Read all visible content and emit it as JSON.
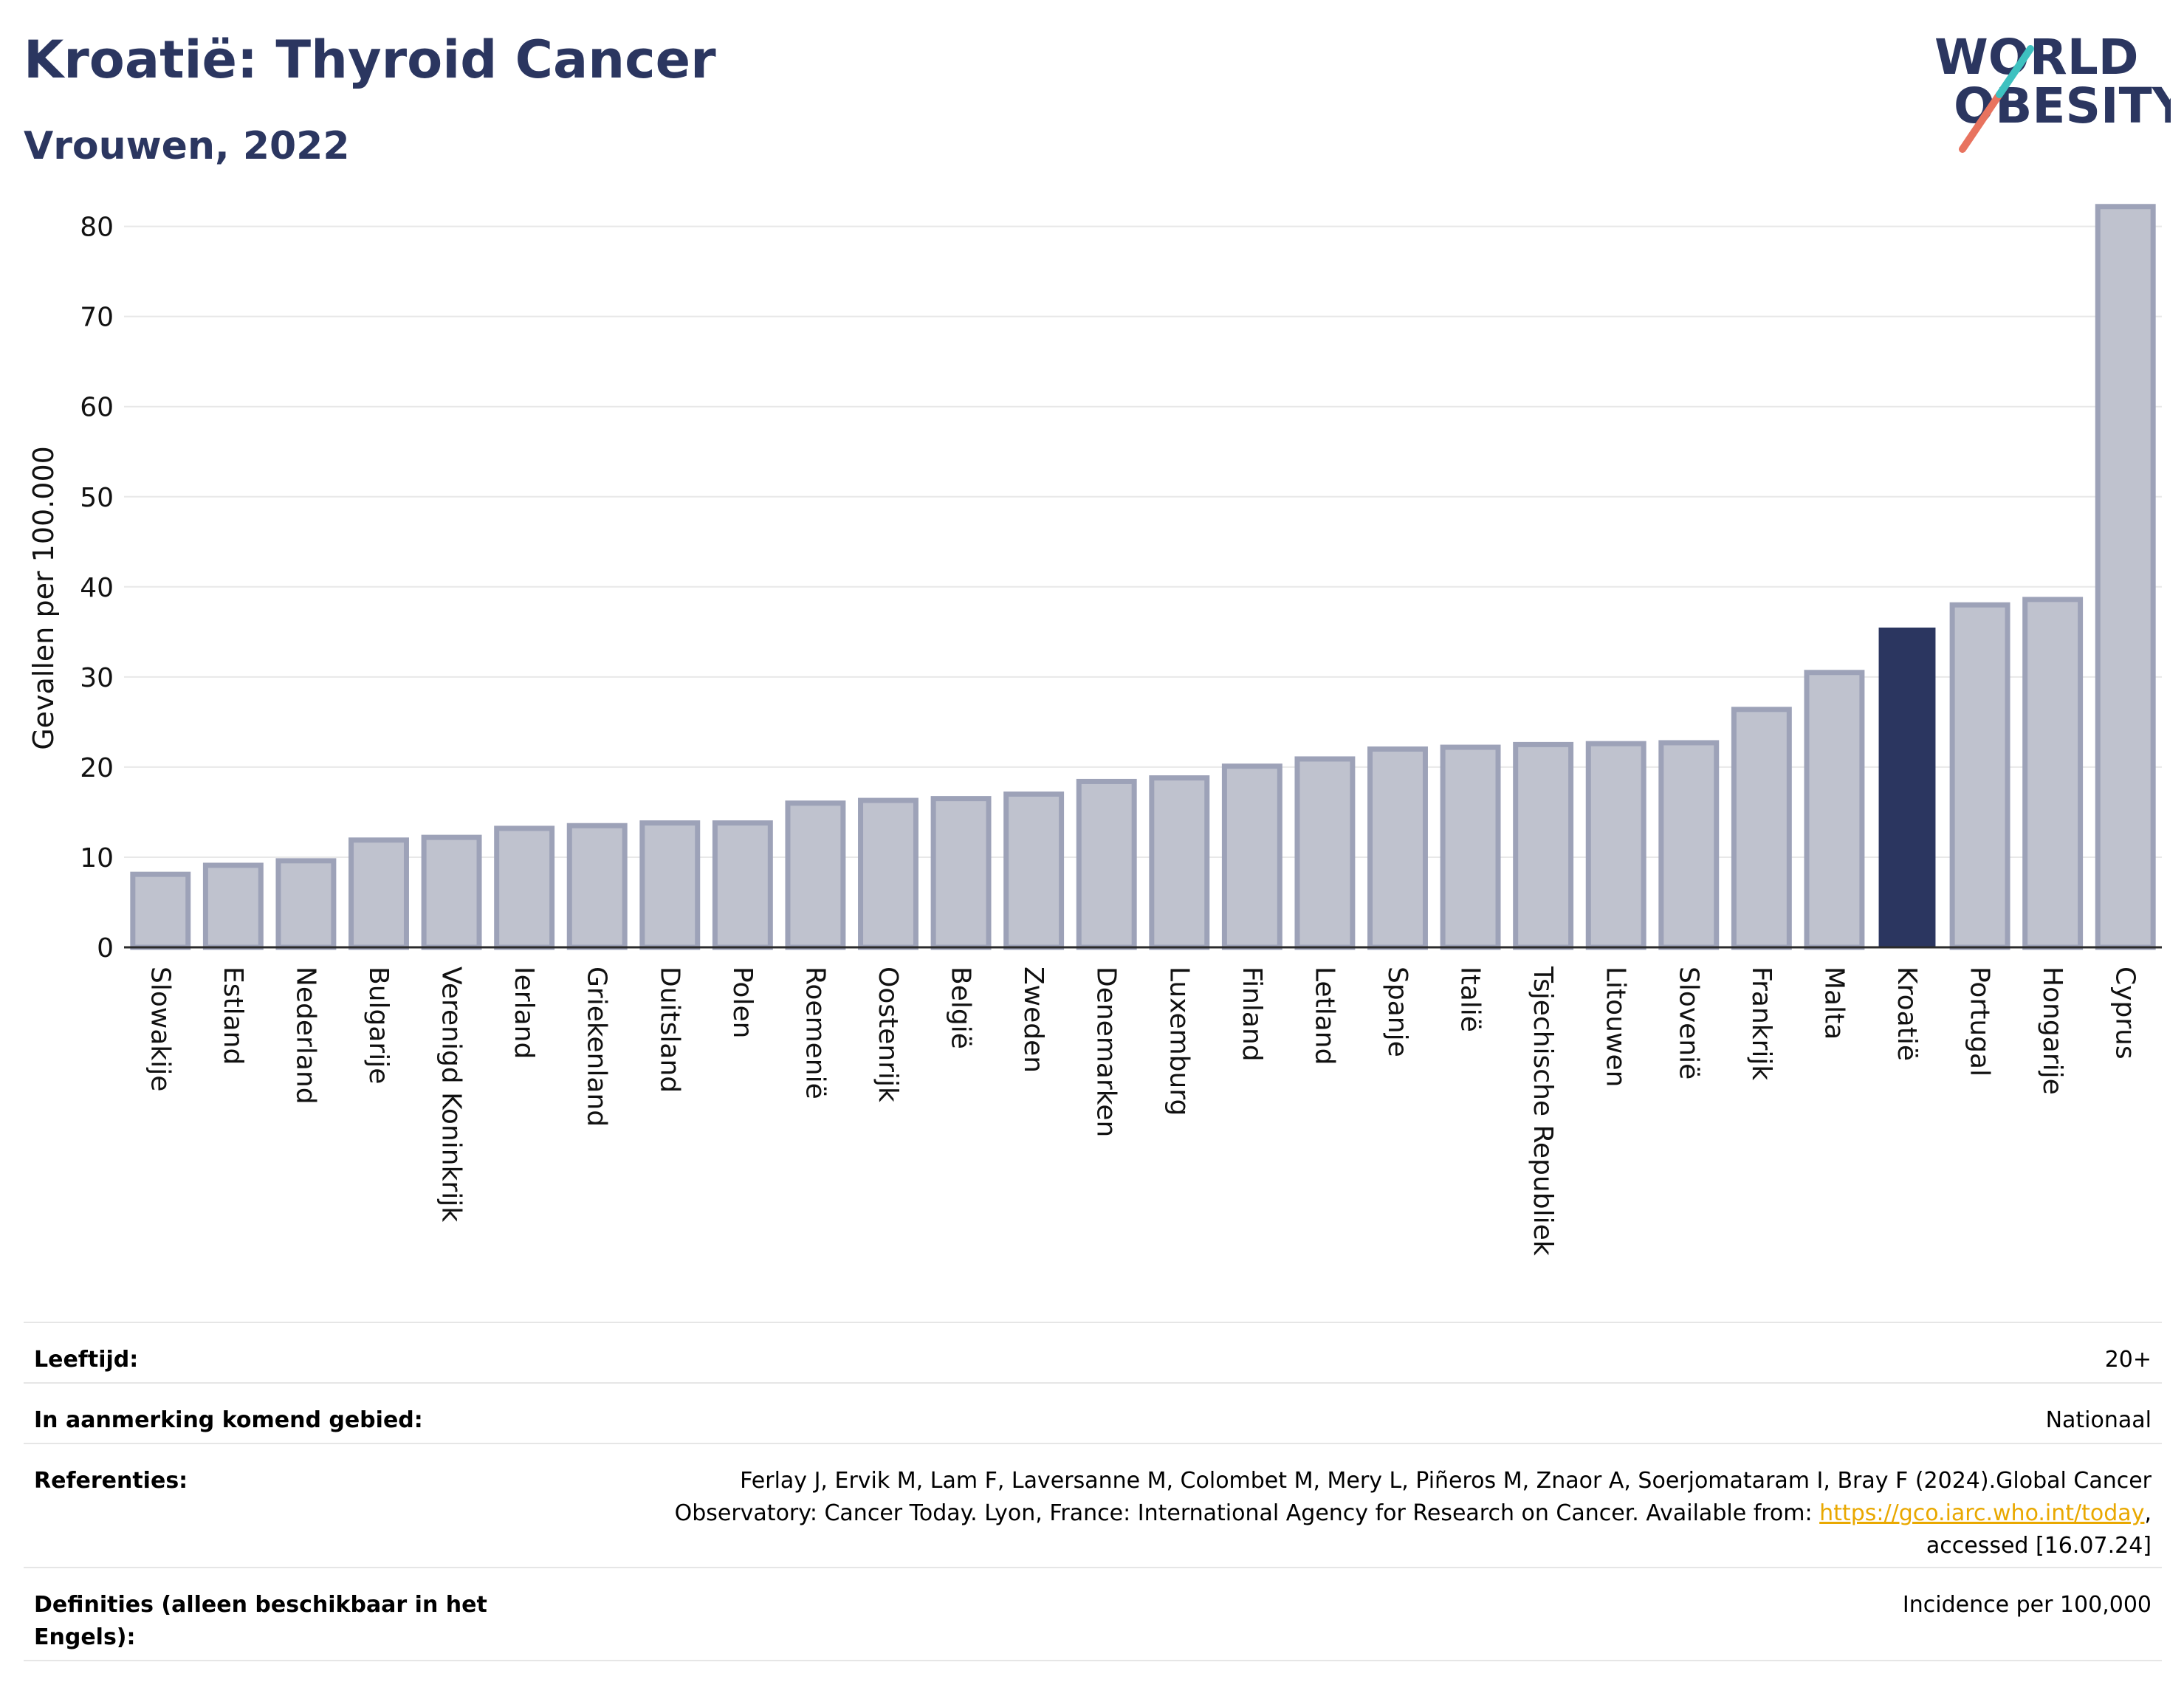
{
  "header": {
    "title": "Kroatië: Thyroid Cancer",
    "subtitle": "Vrouwen, 2022",
    "logo_line1": "WORLD",
    "logo_line2": "OBESITY"
  },
  "chart_data": {
    "type": "bar",
    "ylabel": "Gevallen per 100.000",
    "ylim": [
      0,
      83
    ],
    "yticks": [
      0,
      10,
      20,
      30,
      40,
      50,
      60,
      70,
      80
    ],
    "grid": true,
    "categories": [
      "Slowakije",
      "Estland",
      "Nederland",
      "Bulgarije",
      "Verenigd Koninkrijk",
      "Ierland",
      "Griekenland",
      "Duitsland",
      "Polen",
      "Roemenië",
      "Oostenrijk",
      "België",
      "Zweden",
      "Denemarken",
      "Luxemburg",
      "Finland",
      "Letland",
      "Spanje",
      "Italië",
      "Tsjechische Republiek",
      "Litouwen",
      "Slovenië",
      "Frankrijk",
      "Malta",
      "Kroatië",
      "Portugal",
      "Hongarije",
      "Cyprus"
    ],
    "values": [
      8.1,
      9.1,
      9.6,
      11.9,
      12.2,
      13.2,
      13.5,
      13.8,
      13.8,
      16.0,
      16.3,
      16.5,
      17.0,
      18.4,
      18.8,
      20.1,
      20.9,
      22.0,
      22.2,
      22.5,
      22.6,
      22.7,
      26.4,
      30.5,
      35.4,
      38.0,
      38.6,
      82.2
    ],
    "highlight": "Kroatië",
    "colors": {
      "bar": "#bfc2ce",
      "bar_edge": "#9da2b8",
      "highlight": "#2b3660"
    }
  },
  "meta": {
    "age_label": "Leeftijd:",
    "age_value": "20+",
    "area_label": "In aanmerking komend gebied:",
    "area_value": "Nationaal",
    "ref_label": "Referenties:",
    "ref_text1": "Ferlay J, Ervik M, Lam F, Laversanne M, Colombet M, Mery L, Piñeros M, Znaor A, Soerjomataram I, Bray F (2024).Global Cancer Observatory: Cancer Today. Lyon, France: International Agency for Research on Cancer. Available from: ",
    "ref_link": "https://gco.iarc.who.int/today",
    "ref_text2": ", accessed [16.07.24]",
    "def_label": "Definities (alleen beschikbaar in het Engels):",
    "def_value": "Incidence per 100,000"
  }
}
